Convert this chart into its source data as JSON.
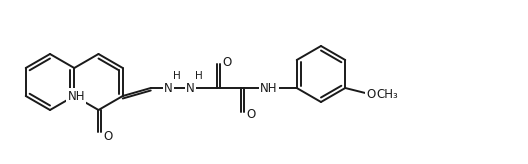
{
  "background_color": "#ffffff",
  "line_color": "#1a1a1a",
  "line_width": 1.4,
  "font_size": 8.5,
  "figsize": [
    5.28,
    1.64
  ],
  "dpi": 100,
  "atoms": {
    "NH_quinoline": "NH",
    "O_quinoline": "O",
    "N1_hydrazone": "N",
    "H_hydrazone": "H",
    "N2_hydrazone": "N",
    "H_N2": "H",
    "O_top": "O",
    "O_bottom": "O",
    "NH_amide": "NH",
    "O_methoxy": "O",
    "CH3_methoxy": "CH₃"
  }
}
